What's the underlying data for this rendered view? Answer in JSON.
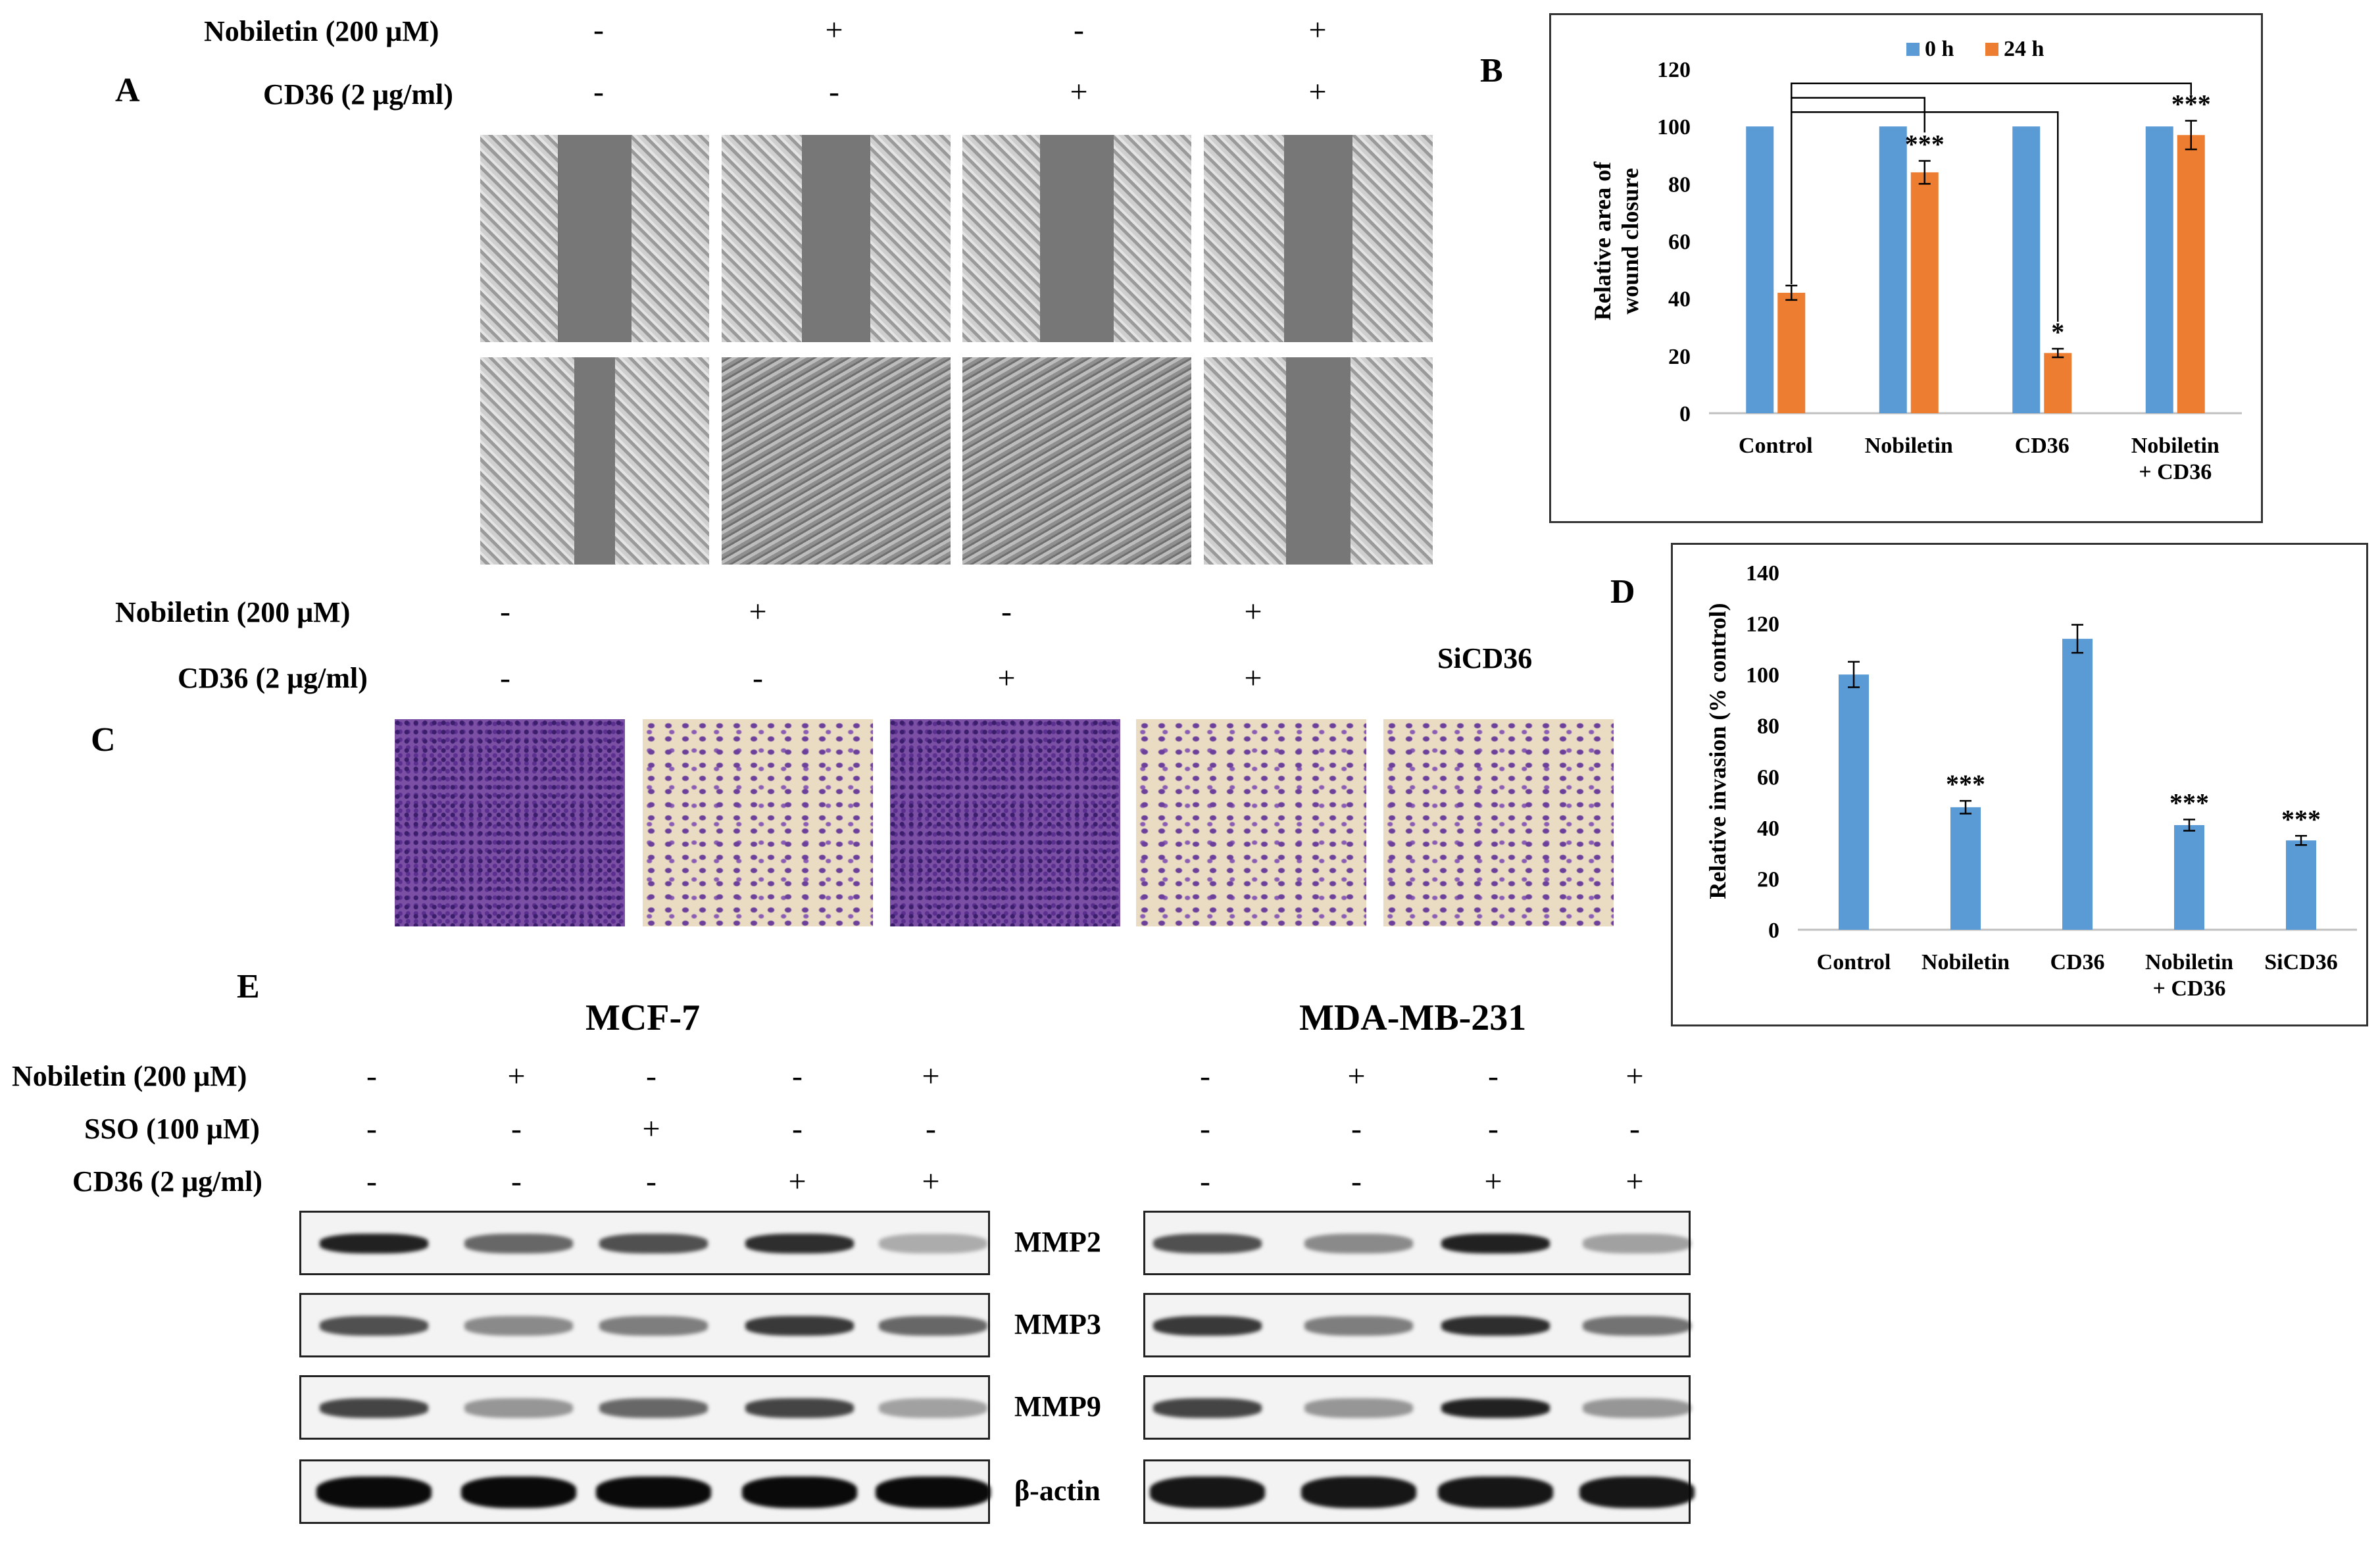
{
  "panels": {
    "A": "A",
    "B": "B",
    "C": "C",
    "D": "D",
    "E": "E"
  },
  "panelA": {
    "row1_label": "Nobiletin (200 μM)",
    "row2_label": "CD36 (2 μg/ml)",
    "row1_symbols": [
      "-",
      "+",
      "-",
      "+"
    ],
    "row2_symbols": [
      "-",
      "-",
      "+",
      "+"
    ]
  },
  "panelC": {
    "row1_label": "Nobiletin (200 μM)",
    "row2_label": "CD36 (2 μg/ml)",
    "row1_symbols": [
      "-",
      "+",
      "-",
      "+"
    ],
    "row2_symbols": [
      "-",
      "-",
      "+",
      "+"
    ],
    "extra_label": "SiCD36"
  },
  "panelE": {
    "group1_title": "MCF-7",
    "group2_title": "MDA-MB-231",
    "row_labels": [
      "Nobiletin (200 μM)",
      "SSO (100 μM)",
      "CD36 (2 μg/ml)"
    ],
    "group1_symbols": [
      [
        "-",
        "+",
        "-",
        "-",
        "+"
      ],
      [
        "-",
        "-",
        "+",
        "-",
        "-"
      ],
      [
        "-",
        "-",
        "-",
        "+",
        "+"
      ]
    ],
    "group2_symbols": [
      [
        "-",
        "+",
        "-",
        "+"
      ],
      [
        "-",
        "-",
        "-",
        "-"
      ],
      [
        "-",
        "-",
        "+",
        "+"
      ]
    ],
    "blot_labels": [
      "MMP2",
      "MMP3",
      "MMP9",
      "β-actin"
    ],
    "group1_band_intensity": [
      [
        0.9,
        0.6,
        0.7,
        0.85,
        0.3
      ],
      [
        0.7,
        0.45,
        0.5,
        0.8,
        0.6
      ],
      [
        0.75,
        0.4,
        0.6,
        0.75,
        0.35
      ],
      [
        1.0,
        1.0,
        1.0,
        1.0,
        1.0
      ]
    ],
    "group2_band_intensity": [
      [
        0.7,
        0.45,
        0.9,
        0.35
      ],
      [
        0.8,
        0.5,
        0.85,
        0.55
      ],
      [
        0.75,
        0.4,
        0.9,
        0.4
      ],
      [
        0.95,
        0.95,
        0.95,
        0.95
      ]
    ]
  },
  "chart_data": [
    {
      "type": "bar",
      "panel": "B",
      "ylabel": "Relative  area of wound closure",
      "categories": [
        "Control",
        "Nobiletin",
        "CD36",
        "Nobiletin + CD36"
      ],
      "series": [
        {
          "name": "0 h",
          "color": "#5b9bd5",
          "values": [
            100,
            100,
            100,
            100
          ],
          "errors": [
            0,
            0,
            0,
            0
          ]
        },
        {
          "name": "24 h",
          "color": "#ed7d31",
          "values": [
            42,
            84,
            21,
            97
          ],
          "errors": [
            2.5,
            4,
            1.5,
            5
          ]
        }
      ],
      "significance": [
        "",
        "***",
        "*",
        "***"
      ],
      "ylim": [
        0,
        120
      ],
      "yticks": [
        0,
        20,
        40,
        60,
        80,
        100,
        120
      ],
      "legend_position": "top",
      "grid": false
    },
    {
      "type": "bar",
      "panel": "D",
      "ylabel": "Relative  invasion (% control)",
      "categories": [
        "Control",
        "Nobiletin",
        "CD36",
        "Nobiletin + CD36",
        "SiCD36"
      ],
      "series": [
        {
          "color": "#5b9bd5",
          "values": [
            100,
            48,
            114,
            41,
            35
          ],
          "errors": [
            5,
            2.5,
            5.5,
            2.2,
            1.8
          ]
        }
      ],
      "significance": [
        "",
        "***",
        "",
        "***",
        "***"
      ],
      "ylim": [
        0,
        140
      ],
      "yticks": [
        0,
        20,
        40,
        60,
        80,
        100,
        120,
        140
      ],
      "grid": false
    }
  ]
}
